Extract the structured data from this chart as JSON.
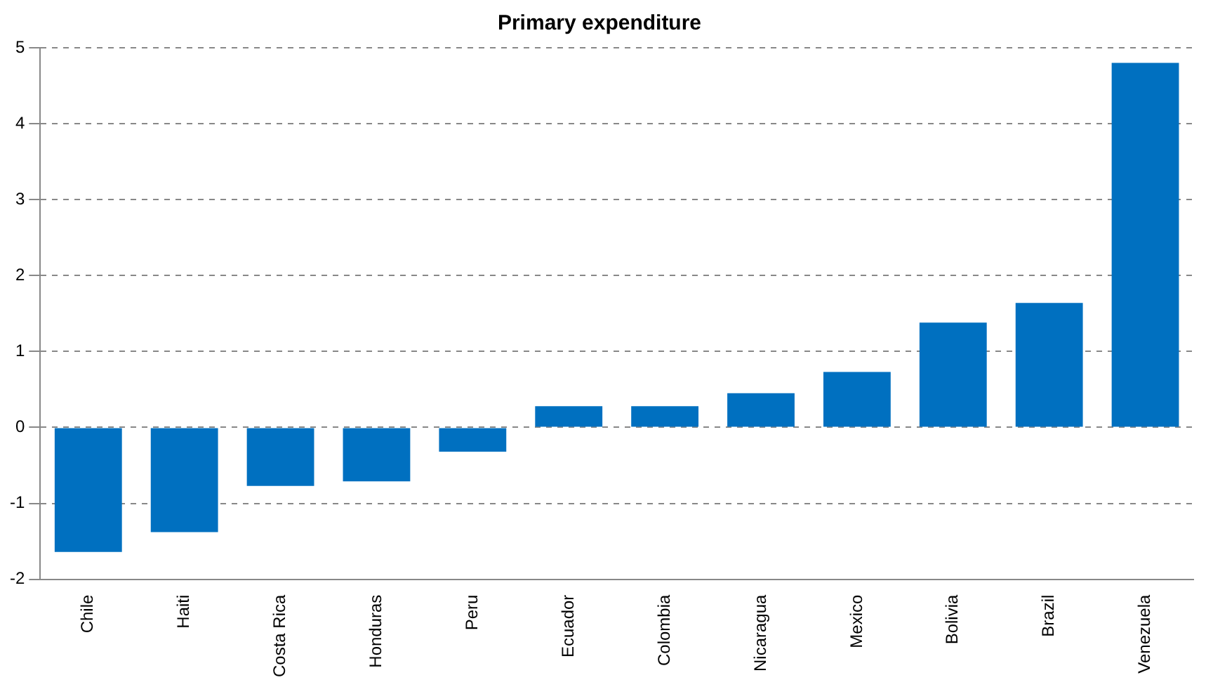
{
  "chart_data": {
    "type": "bar",
    "title": "Primary expenditure",
    "categories": [
      "Chile",
      "Haiti",
      "Costa Rica",
      "Honduras",
      "Peru",
      "Ecuador",
      "Colombia",
      "Nicaragua",
      "Mexico",
      "Bolivia",
      "Brazil",
      "Venezuela"
    ],
    "values": [
      -1.64,
      -1.38,
      -0.77,
      -0.71,
      -0.32,
      0.28,
      0.28,
      0.45,
      0.73,
      1.38,
      1.64,
      4.8
    ],
    "color": "#0070c0",
    "ylim": [
      -2,
      5
    ],
    "yticks": [
      -2,
      -1,
      0,
      1,
      2,
      3,
      4,
      5
    ],
    "grid": "y",
    "legend": false
  }
}
